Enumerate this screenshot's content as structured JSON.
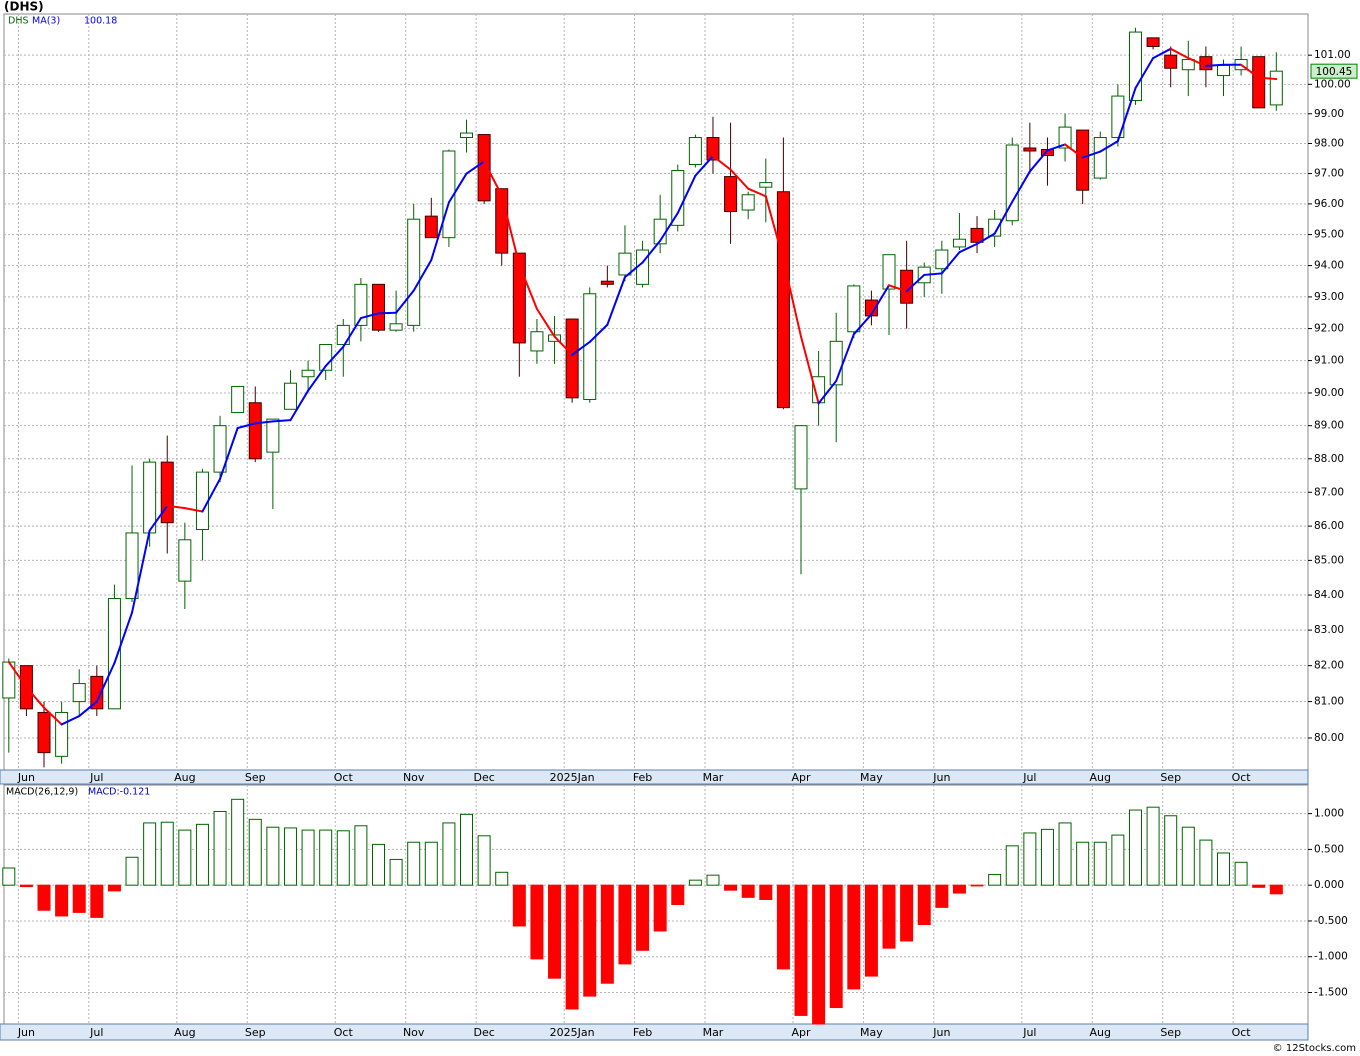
{
  "chart_data": [
    {
      "type": "candlestick",
      "title": "(DHS)",
      "log_scale": true,
      "grid": true,
      "xlim": [
        -0.5,
        73.8
      ],
      "ylim": [
        79.13,
        102.43
      ],
      "xticks": [
        {
          "value": 1,
          "label": "Jun"
        },
        {
          "value": 5,
          "label": "Jul"
        },
        {
          "value": 10,
          "label": "Aug"
        },
        {
          "value": 14,
          "label": "Sep"
        },
        {
          "value": 19,
          "label": "Oct"
        },
        {
          "value": 23,
          "label": "Nov"
        },
        {
          "value": 27,
          "label": "Dec"
        },
        {
          "value": 32,
          "label": "2025Jan"
        },
        {
          "value": 36,
          "label": "Feb"
        },
        {
          "value": 40,
          "label": "Mar"
        },
        {
          "value": 45,
          "label": "Apr"
        },
        {
          "value": 49,
          "label": "May"
        },
        {
          "value": 53,
          "label": "Jun"
        },
        {
          "value": 58,
          "label": "Jul"
        },
        {
          "value": 62,
          "label": "Aug"
        },
        {
          "value": 66,
          "label": "Sep"
        },
        {
          "value": 70,
          "label": "Oct"
        }
      ],
      "yticks": [
        {
          "value": 80,
          "label": "80.00"
        },
        {
          "value": 81,
          "label": "81.00"
        },
        {
          "value": 82,
          "label": "82.00"
        },
        {
          "value": 83,
          "label": "83.00"
        },
        {
          "value": 84,
          "label": "84.00"
        },
        {
          "value": 85,
          "label": "85.00"
        },
        {
          "value": 86,
          "label": "86.00"
        },
        {
          "value": 87,
          "label": "87.00"
        },
        {
          "value": 88,
          "label": "88.00"
        },
        {
          "value": 89,
          "label": "89.00"
        },
        {
          "value": 90,
          "label": "90.00"
        },
        {
          "value": 91,
          "label": "91.00"
        },
        {
          "value": 92,
          "label": "92.00"
        },
        {
          "value": 93,
          "label": "93.00"
        },
        {
          "value": 94,
          "label": "94.00"
        },
        {
          "value": 95,
          "label": "95.00"
        },
        {
          "value": 96,
          "label": "96.00"
        },
        {
          "value": 97,
          "label": "97.00"
        },
        {
          "value": 98,
          "label": "98.00"
        },
        {
          "value": 99,
          "label": "99.00"
        },
        {
          "value": 100,
          "label": "100.00"
        },
        {
          "value": 101,
          "label": "101.00"
        }
      ],
      "series": [
        {
          "name": "DHS",
          "up_color": "#006400",
          "down_color": "#ff0000",
          "open": [
            81.1,
            82.0,
            80.7,
            79.5,
            81.0,
            81.7,
            80.8,
            83.9,
            85.8,
            87.9,
            84.4,
            85.9,
            87.6,
            89.4,
            89.7,
            88.2,
            89.5,
            90.5,
            90.7,
            91.5,
            92.1,
            93.4,
            91.95,
            92.1,
            95.6,
            94.9,
            98.2,
            98.3,
            96.5,
            94.4,
            91.3,
            91.6,
            92.3,
            89.8,
            93.5,
            93.7,
            93.4,
            94.7,
            95.3,
            97.3,
            98.2,
            96.9,
            95.8,
            96.55,
            96.4,
            87.1,
            89.7,
            90.25,
            91.9,
            92.9,
            93.25,
            93.85,
            93.45,
            93.9,
            94.6,
            95.2,
            94.95,
            95.45,
            97.85,
            97.8,
            97.85,
            98.45,
            96.85,
            98.2,
            99.45,
            101.6,
            101.0,
            100.5,
            100.95,
            100.3,
            100.5,
            100.95,
            99.3
          ],
          "high": [
            82.2,
            82.0,
            81.0,
            81.0,
            81.9,
            82.0,
            84.3,
            87.8,
            88.0,
            88.7,
            86.1,
            87.7,
            89.3,
            90.2,
            90.2,
            89.2,
            90.7,
            91.0,
            91.5,
            92.3,
            93.6,
            93.4,
            93.2,
            96.0,
            96.2,
            97.8,
            98.8,
            98.3,
            96.5,
            94.4,
            92.3,
            92.4,
            92.3,
            93.3,
            94.0,
            95.3,
            94.8,
            96.3,
            97.3,
            98.3,
            98.9,
            98.7,
            96.4,
            97.5,
            98.2,
            89.0,
            91.3,
            92.5,
            93.4,
            93.2,
            94.35,
            94.8,
            94.1,
            94.8,
            95.7,
            95.6,
            95.8,
            98.2,
            98.7,
            98.2,
            99.0,
            98.45,
            98.4,
            100.0,
            101.95,
            101.6,
            101.3,
            101.5,
            101.3,
            100.85,
            101.3,
            100.95,
            101.1
          ],
          "low": [
            79.6,
            80.6,
            79.2,
            79.3,
            80.6,
            80.6,
            80.8,
            83.8,
            85.4,
            85.2,
            83.6,
            85.0,
            87.3,
            89.4,
            87.9,
            86.5,
            89.5,
            90.1,
            90.4,
            90.5,
            91.6,
            91.9,
            91.9,
            91.9,
            94.9,
            94.6,
            97.7,
            96.0,
            94.0,
            90.5,
            90.9,
            90.9,
            89.7,
            89.7,
            93.3,
            93.5,
            93.3,
            94.4,
            95.1,
            97.2,
            97.0,
            94.7,
            95.5,
            95.4,
            89.5,
            84.6,
            89.0,
            88.5,
            91.7,
            92.1,
            91.8,
            92.0,
            93.0,
            93.1,
            94.5,
            94.4,
            94.6,
            95.3,
            97.0,
            96.6,
            97.4,
            96.0,
            96.8,
            97.9,
            99.3,
            101.2,
            99.9,
            99.6,
            99.9,
            99.6,
            100.3,
            99.2,
            99.1
          ],
          "close": [
            82.1,
            80.8,
            79.6,
            80.7,
            81.5,
            80.8,
            83.9,
            85.8,
            87.9,
            86.1,
            85.6,
            87.6,
            89.0,
            90.2,
            88.0,
            89.2,
            90.3,
            90.7,
            91.5,
            92.1,
            93.4,
            91.95,
            92.15,
            95.5,
            94.9,
            97.75,
            98.35,
            96.1,
            94.4,
            91.55,
            91.9,
            91.8,
            89.85,
            93.1,
            93.4,
            94.4,
            94.5,
            95.5,
            97.1,
            98.2,
            97.45,
            95.75,
            96.3,
            96.7,
            89.55,
            89.0,
            90.5,
            91.6,
            93.35,
            92.4,
            94.35,
            92.8,
            93.95,
            94.5,
            94.85,
            94.75,
            95.5,
            97.95,
            97.75,
            97.6,
            98.55,
            96.45,
            98.2,
            99.6,
            101.8,
            101.3,
            100.55,
            100.85,
            100.5,
            100.65,
            100.85,
            99.2,
            100.45
          ]
        },
        {
          "name": "MA(3)",
          "color": "#0000ff",
          "down_color": "#ff0000",
          "values": [
            82.1,
            81.4,
            80.83,
            80.37,
            80.6,
            81.0,
            82.07,
            83.5,
            85.87,
            86.6,
            86.53,
            86.43,
            87.4,
            88.93,
            89.07,
            89.13,
            89.17,
            90.07,
            90.83,
            91.43,
            92.33,
            92.48,
            92.5,
            93.2,
            94.18,
            96.05,
            97.0,
            97.4,
            96.28,
            94.02,
            92.62,
            91.75,
            91.18,
            91.58,
            92.12,
            93.63,
            94.1,
            94.8,
            95.7,
            96.93,
            97.58,
            97.13,
            96.5,
            96.25,
            94.18,
            91.75,
            89.68,
            90.37,
            91.82,
            92.45,
            93.37,
            93.18,
            93.7,
            93.75,
            94.43,
            94.7,
            95.03,
            96.07,
            97.07,
            97.77,
            97.97,
            97.53,
            97.73,
            98.08,
            99.87,
            100.9,
            101.22,
            100.9,
            100.63,
            100.67,
            100.67,
            100.23,
            100.18
          ]
        }
      ]
    },
    {
      "type": "bar",
      "title": "MACD(26,12,9)",
      "grid": true,
      "xlim": [
        -0.5,
        73.8
      ],
      "ylim": [
        -1.94,
        1.4
      ],
      "xticks": [
        {
          "value": 1,
          "label": "Jun"
        },
        {
          "value": 5,
          "label": "Jul"
        },
        {
          "value": 10,
          "label": "Aug"
        },
        {
          "value": 14,
          "label": "Sep"
        },
        {
          "value": 19,
          "label": "Oct"
        },
        {
          "value": 23,
          "label": "Nov"
        },
        {
          "value": 27,
          "label": "Dec"
        },
        {
          "value": 32,
          "label": "2025Jan"
        },
        {
          "value": 36,
          "label": "Feb"
        },
        {
          "value": 40,
          "label": "Mar"
        },
        {
          "value": 45,
          "label": "Apr"
        },
        {
          "value": 49,
          "label": "May"
        },
        {
          "value": 53,
          "label": "Jun"
        },
        {
          "value": 58,
          "label": "Jul"
        },
        {
          "value": 62,
          "label": "Aug"
        },
        {
          "value": 66,
          "label": "Sep"
        },
        {
          "value": 70,
          "label": "Oct"
        }
      ],
      "yticks": [
        {
          "value": -1.5,
          "label": "-1.500"
        },
        {
          "value": -1,
          "label": "-1.000"
        },
        {
          "value": -0.5,
          "label": "-0.500"
        },
        {
          "value": 0,
          "label": "0.000"
        },
        {
          "value": 0.5,
          "label": "0.500"
        },
        {
          "value": 1,
          "label": "1.000"
        }
      ],
      "series": [
        {
          "name": "MACD:-0.121",
          "up_color": "#006400",
          "down_color": "#ff0000",
          "values": [
            0.24,
            -0.02,
            -0.35,
            -0.43,
            -0.38,
            -0.45,
            -0.08,
            0.39,
            0.87,
            0.88,
            0.77,
            0.85,
            1.03,
            1.2,
            0.92,
            0.81,
            0.8,
            0.77,
            0.77,
            0.76,
            0.83,
            0.57,
            0.36,
            0.6,
            0.6,
            0.87,
            0.99,
            0.69,
            0.18,
            -0.57,
            -1.03,
            -1.3,
            -1.73,
            -1.55,
            -1.37,
            -1.1,
            -0.91,
            -0.64,
            -0.27,
            0.07,
            0.14,
            -0.07,
            -0.17,
            -0.2,
            -1.17,
            -1.82,
            -1.94,
            -1.71,
            -1.45,
            -1.27,
            -0.88,
            -0.78,
            -0.55,
            -0.31,
            -0.11,
            -0.01,
            0.15,
            0.55,
            0.73,
            0.78,
            0.87,
            0.6,
            0.6,
            0.7,
            1.05,
            1.09,
            0.97,
            0.81,
            0.63,
            0.45,
            0.32,
            -0.03,
            -0.121
          ]
        }
      ]
    }
  ],
  "footer": "© 12Stocks.com"
}
